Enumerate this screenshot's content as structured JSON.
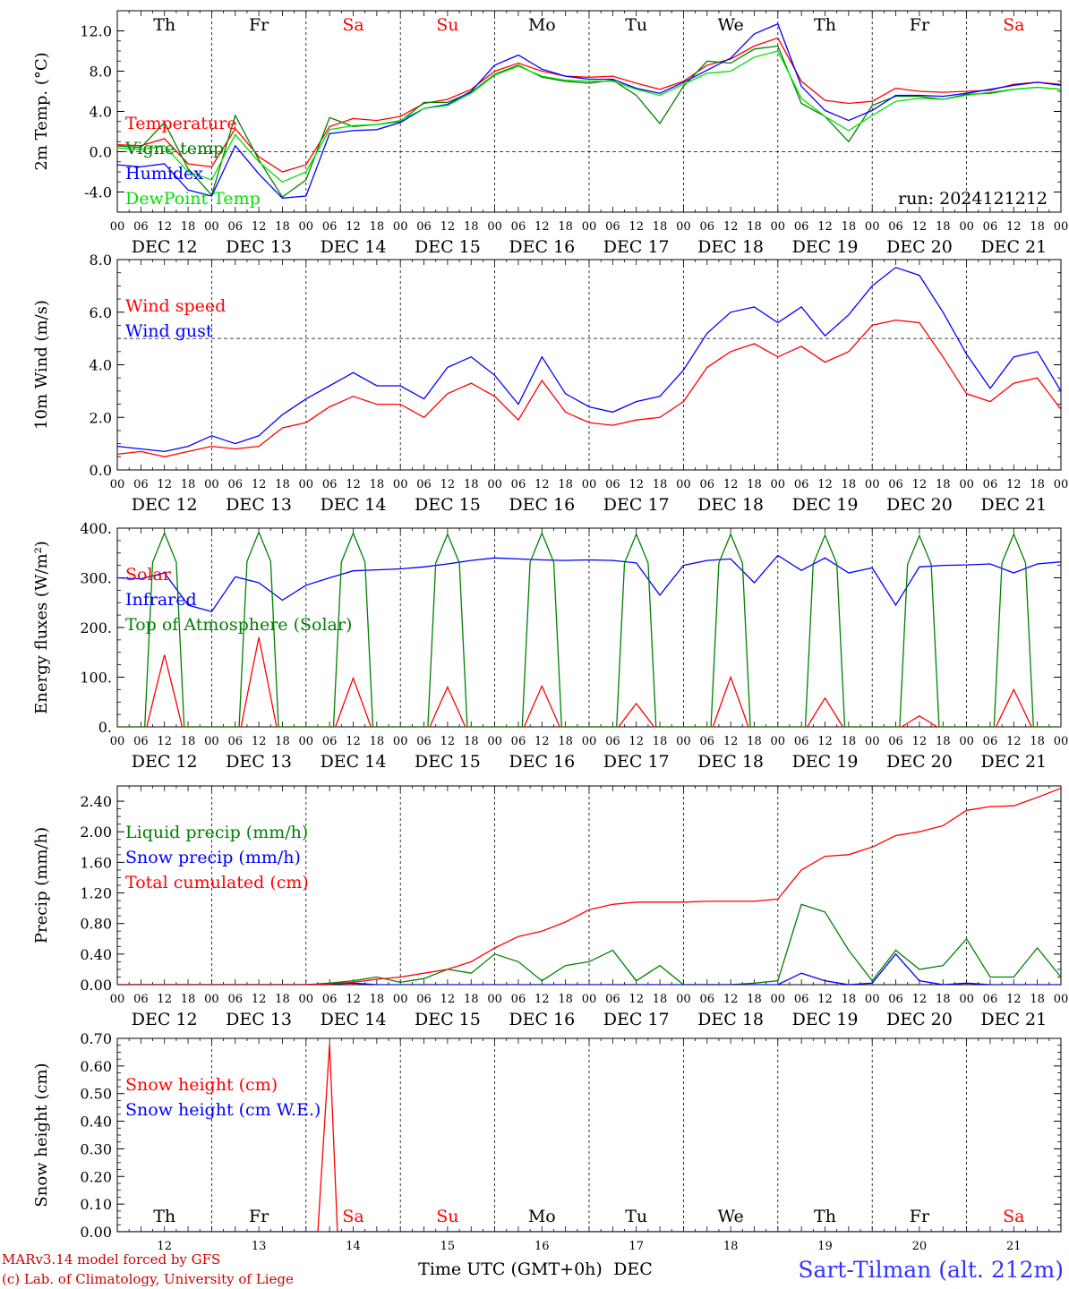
{
  "meta": {
    "run_label": "run: 2024121212",
    "model_line1": "MARv3.14 model forced by GFS",
    "model_line2": "(c) Lab. of Climatology, University of Liege",
    "station": "Sart-Tilman (alt. 212m)",
    "xlabel": "Time UTC (GMT+0h)",
    "xunit": "DEC"
  },
  "colors": {
    "red": "#ff0000",
    "blue": "#0000ff",
    "green": "#008000",
    "lime": "#00e000",
    "weekend": "#ff0000",
    "weekday": "#000000",
    "station": "#3333ff",
    "footer": "#cc0000"
  },
  "days": [
    {
      "dow": "Th",
      "date": "DEC 12",
      "num": "12",
      "weekend": false
    },
    {
      "dow": "Fr",
      "date": "DEC 13",
      "num": "13",
      "weekend": false
    },
    {
      "dow": "Sa",
      "date": "DEC 14",
      "num": "14",
      "weekend": true
    },
    {
      "dow": "Su",
      "date": "DEC 15",
      "num": "15",
      "weekend": true
    },
    {
      "dow": "Mo",
      "date": "DEC 16",
      "num": "16",
      "weekend": false
    },
    {
      "dow": "Tu",
      "date": "DEC 17",
      "num": "17",
      "weekend": false
    },
    {
      "dow": "We",
      "date": "DEC 18",
      "num": "18",
      "weekend": false
    },
    {
      "dow": "Th",
      "date": "DEC 19",
      "num": "19",
      "weekend": false
    },
    {
      "dow": "Fr",
      "date": "DEC 20",
      "num": "20",
      "weekend": false
    },
    {
      "dow": "Sa",
      "date": "DEC 21",
      "num": "21",
      "weekend": true
    }
  ],
  "hour_labels": [
    "00",
    "06",
    "12",
    "18"
  ],
  "chart_data": [
    {
      "type": "line",
      "id": "temperature",
      "ylabel": "2m Temp. (°C)",
      "ylim": [
        -6,
        14
      ],
      "yticks": [
        -4,
        0,
        4,
        8,
        12
      ],
      "ytick_labels": [
        "-4.0",
        "0.0",
        "4.0",
        "8.0",
        "12.0"
      ],
      "hline": 0,
      "show_dow": true,
      "x_hours": [
        0,
        6,
        12,
        18,
        24,
        30,
        36,
        42,
        48,
        54,
        60,
        66,
        72,
        78,
        84,
        90,
        96,
        102,
        108,
        114,
        120,
        126,
        132,
        138,
        144,
        150,
        156,
        162,
        168,
        174,
        180,
        186,
        192,
        198,
        204,
        210,
        216,
        222,
        228,
        234,
        240
      ],
      "series": [
        {
          "name": "Temperature",
          "color": "red",
          "values": [
            0.7,
            0.6,
            1.3,
            -1.2,
            -1.5,
            2.3,
            -0.5,
            -2.0,
            -1.3,
            2.5,
            3.3,
            3.1,
            3.5,
            4.8,
            5.2,
            6.2,
            8.0,
            8.8,
            8.0,
            7.5,
            7.4,
            7.5,
            6.8,
            6.2,
            7.0,
            8.6,
            9.2,
            10.5,
            11.3,
            7.0,
            5.1,
            4.8,
            5.0,
            6.3,
            6.0,
            5.9,
            6.0,
            6.1,
            6.7,
            6.9,
            6.7
          ]
        },
        {
          "name": "Vigne temp",
          "color": "green",
          "values": [
            0.6,
            0.4,
            2.9,
            -1.7,
            -4.3,
            3.6,
            -0.8,
            -4.5,
            -2.8,
            3.4,
            2.5,
            2.7,
            3.0,
            4.9,
            4.9,
            5.9,
            7.7,
            8.6,
            7.4,
            7.0,
            6.8,
            7.1,
            5.6,
            2.8,
            6.5,
            9.0,
            8.8,
            10.2,
            10.5,
            4.8,
            3.5,
            1.0,
            4.6,
            5.5,
            5.5,
            5.2,
            5.7,
            5.8,
            6.2,
            6.4,
            6.2
          ]
        },
        {
          "name": "Humidex",
          "color": "blue",
          "values": [
            -1.3,
            -1.5,
            -1.2,
            -3.8,
            -4.4,
            0.6,
            -2.2,
            -4.6,
            -4.4,
            1.8,
            2.1,
            2.2,
            2.9,
            4.3,
            4.7,
            6.0,
            8.6,
            9.6,
            8.2,
            7.5,
            7.2,
            7.2,
            6.3,
            5.8,
            6.9,
            8.1,
            9.3,
            11.7,
            12.7,
            6.5,
            4.1,
            3.1,
            4.1,
            5.6,
            5.6,
            5.5,
            5.8,
            6.2,
            6.6,
            6.9,
            6.6
          ]
        },
        {
          "name": "DewPoint Temp",
          "color": "lime",
          "values": [
            0.4,
            0.2,
            0.6,
            -2.0,
            -2.8,
            1.7,
            -1.0,
            -3.0,
            -2.0,
            2.2,
            2.6,
            2.7,
            3.1,
            4.3,
            4.6,
            5.8,
            7.6,
            8.5,
            7.5,
            7.1,
            7.0,
            7.0,
            6.2,
            5.6,
            6.7,
            7.8,
            8.0,
            9.4,
            10.0,
            5.3,
            3.5,
            2.1,
            3.6,
            5.0,
            5.3,
            5.2,
            5.6,
            5.9,
            6.2,
            6.4,
            6.2
          ]
        }
      ]
    },
    {
      "type": "line",
      "id": "wind",
      "ylabel": "10m Wind (m/s)",
      "ylim": [
        0,
        8
      ],
      "yticks": [
        0,
        2,
        4,
        6,
        8
      ],
      "ytick_labels": [
        "0.0",
        "2.0",
        "4.0",
        "6.0",
        "8.0"
      ],
      "hline": 5,
      "show_dow": false,
      "x_hours": [
        0,
        6,
        12,
        18,
        24,
        30,
        36,
        42,
        48,
        54,
        60,
        66,
        72,
        78,
        84,
        90,
        96,
        102,
        108,
        114,
        120,
        126,
        132,
        138,
        144,
        150,
        156,
        162,
        168,
        174,
        180,
        186,
        192,
        198,
        204,
        210,
        216,
        222,
        228,
        234,
        240
      ],
      "series": [
        {
          "name": "Wind speed",
          "color": "red",
          "values": [
            0.6,
            0.7,
            0.5,
            0.7,
            0.9,
            0.8,
            0.9,
            1.6,
            1.8,
            2.4,
            2.8,
            2.5,
            2.5,
            2.0,
            2.9,
            3.3,
            2.8,
            1.9,
            3.4,
            2.2,
            1.8,
            1.7,
            1.9,
            2.0,
            2.6,
            3.9,
            4.5,
            4.8,
            4.3,
            4.7,
            4.1,
            4.5,
            5.5,
            5.7,
            5.6,
            4.3,
            2.9,
            2.6,
            3.3,
            3.5,
            2.3
          ]
        },
        {
          "name": "Wind gust",
          "color": "blue",
          "values": [
            0.9,
            0.8,
            0.7,
            0.9,
            1.3,
            1.0,
            1.3,
            2.1,
            2.7,
            3.2,
            3.7,
            3.2,
            3.2,
            2.7,
            3.9,
            4.3,
            3.6,
            2.5,
            4.3,
            2.9,
            2.4,
            2.2,
            2.6,
            2.8,
            3.8,
            5.2,
            6.0,
            6.2,
            5.6,
            6.2,
            5.1,
            5.9,
            7.0,
            7.7,
            7.4,
            6.0,
            4.4,
            3.1,
            4.3,
            4.5,
            3.0
          ]
        }
      ]
    },
    {
      "type": "line",
      "id": "energy",
      "ylabel": "Energy fluxes (W/m²)",
      "ylim": [
        0,
        400
      ],
      "yticks": [
        0,
        100,
        200,
        300,
        400
      ],
      "ytick_labels": [
        "0.",
        "100.",
        "200.",
        "300.",
        "400."
      ],
      "show_dow": false,
      "x_hours": [
        0,
        6,
        12,
        18,
        24,
        30,
        36,
        42,
        48,
        54,
        60,
        66,
        72,
        78,
        84,
        90,
        96,
        102,
        108,
        114,
        120,
        126,
        132,
        138,
        144,
        150,
        156,
        162,
        168,
        174,
        180,
        186,
        192,
        198,
        204,
        210,
        216,
        222,
        228,
        234,
        240
      ],
      "daily": {
        "solar_peaks": [
          145,
          180,
          98,
          80,
          82,
          47,
          100,
          58,
          22,
          75
        ],
        "toa_peaks": [
          390,
          392,
          390,
          388,
          390,
          388,
          388,
          386,
          385,
          388
        ]
      },
      "series": [
        {
          "name": "Solar",
          "color": "red",
          "kind": "daily_solar"
        },
        {
          "name": "Infrared",
          "color": "blue",
          "values": [
            300,
            298,
            310,
            245,
            232,
            302,
            290,
            255,
            285,
            300,
            314,
            316,
            318,
            322,
            328,
            335,
            340,
            338,
            336,
            335,
            336,
            335,
            330,
            265,
            325,
            335,
            338,
            290,
            345,
            315,
            340,
            310,
            320,
            245,
            322,
            325,
            326,
            328,
            310,
            328,
            332
          ]
        },
        {
          "name": "Top of Atmosphere (Solar)",
          "color": "green",
          "kind": "daily_toa"
        }
      ]
    },
    {
      "type": "line",
      "id": "precip",
      "ylabel": "Precip (mm/h)",
      "ylim": [
        0,
        2.6
      ],
      "yticks": [
        0,
        0.4,
        0.8,
        1.2,
        1.6,
        2.0,
        2.4
      ],
      "ytick_labels": [
        "0.00",
        "0.40",
        "0.80",
        "1.20",
        "1.60",
        "2.00",
        "2.40"
      ],
      "show_dow": false,
      "x_hours": [
        0,
        6,
        12,
        18,
        24,
        30,
        36,
        42,
        48,
        54,
        60,
        66,
        72,
        78,
        84,
        90,
        96,
        102,
        108,
        114,
        120,
        126,
        132,
        138,
        144,
        150,
        156,
        162,
        168,
        174,
        180,
        186,
        192,
        198,
        204,
        210,
        216,
        222,
        228,
        234,
        240
      ],
      "series": [
        {
          "name": "Liquid precip (mm/h)",
          "color": "green",
          "values": [
            0,
            0,
            0,
            0,
            0,
            0,
            0,
            0,
            0,
            0.02,
            0.05,
            0.1,
            0.03,
            0.08,
            0.2,
            0.15,
            0.4,
            0.3,
            0.05,
            0.25,
            0.3,
            0.45,
            0.05,
            0.25,
            0,
            0,
            0,
            0.02,
            0.05,
            1.05,
            0.95,
            0.45,
            0.05,
            0.45,
            0.2,
            0.25,
            0.6,
            0.1,
            0.1,
            0.48,
            0.1
          ]
        },
        {
          "name": "Snow precip (mm/h)",
          "color": "blue",
          "values": [
            0,
            0,
            0,
            0,
            0,
            0,
            0,
            0,
            0,
            0.01,
            0.02,
            0,
            0,
            0,
            0,
            0,
            0,
            0,
            0,
            0,
            0,
            0,
            0,
            0,
            0,
            0,
            0,
            0,
            0,
            0.15,
            0.05,
            0,
            0.02,
            0.4,
            0.05,
            0,
            0.02,
            0,
            0,
            0,
            0
          ]
        },
        {
          "name": "Total cumulated (cm)",
          "color": "red",
          "values": [
            0,
            0,
            0,
            0,
            0,
            0,
            0,
            0,
            0,
            0.01,
            0.03,
            0.07,
            0.1,
            0.15,
            0.2,
            0.3,
            0.48,
            0.63,
            0.7,
            0.82,
            0.98,
            1.05,
            1.08,
            1.08,
            1.08,
            1.09,
            1.09,
            1.09,
            1.12,
            1.5,
            1.68,
            1.7,
            1.8,
            1.95,
            2.0,
            2.08,
            2.28,
            2.33,
            2.34,
            2.45,
            2.57
          ]
        }
      ]
    },
    {
      "type": "line",
      "id": "snow",
      "ylabel": "Snow height (cm)",
      "ylim": [
        0,
        0.7
      ],
      "yticks": [
        0,
        0.1,
        0.2,
        0.3,
        0.4,
        0.5,
        0.6,
        0.7
      ],
      "ytick_labels": [
        "0.00",
        "0.10",
        "0.20",
        "0.30",
        "0.40",
        "0.50",
        "0.60",
        "0.70"
      ],
      "show_dow_inside": true,
      "x_hours": [
        0,
        51,
        54,
        56,
        60,
        240
      ],
      "series": [
        {
          "name": "Snow height (cm)",
          "color": "red",
          "values": [
            0,
            0,
            0.68,
            0,
            0,
            0
          ]
        },
        {
          "name": "Snow height (cm W.E.)",
          "color": "blue",
          "values": [
            0,
            0,
            0,
            0,
            0,
            0
          ]
        }
      ]
    }
  ]
}
